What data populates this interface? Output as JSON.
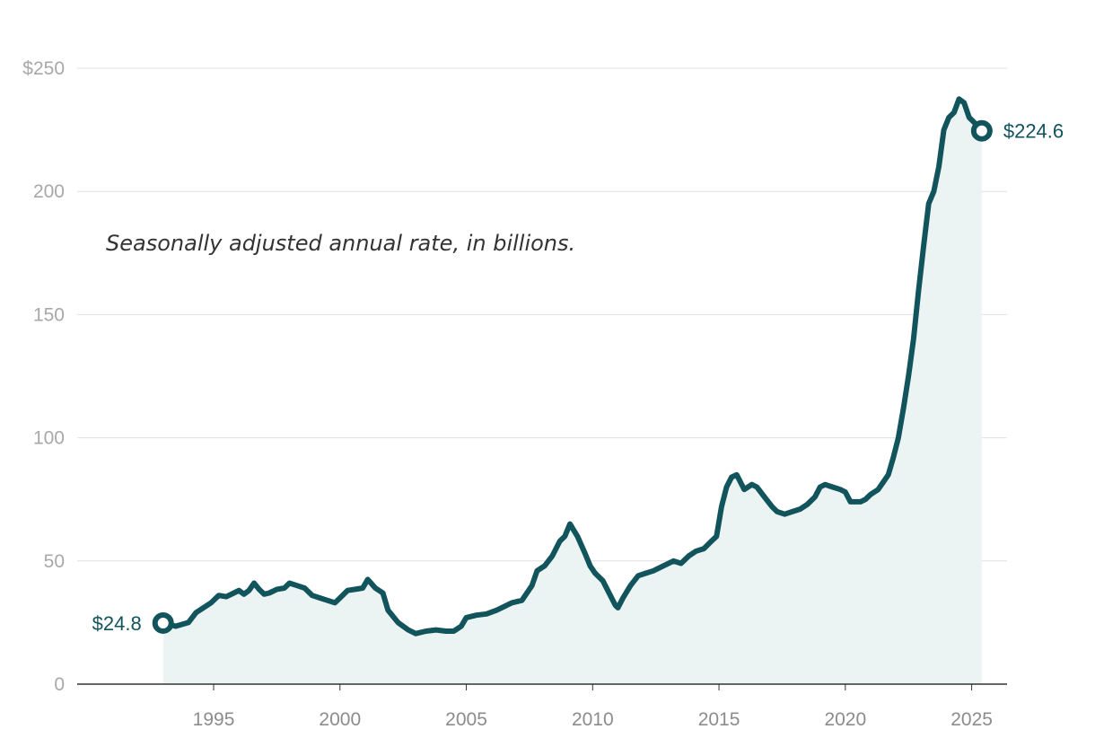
{
  "chart_data": {
    "type": "area",
    "title": "",
    "xlabel": "",
    "ylabel": "",
    "annotation": "Seasonally adjusted annual rate, in billions.",
    "xlim": [
      1989.6,
      2026.4
    ],
    "ylim": [
      0,
      250
    ],
    "yticks": [
      0,
      50,
      100,
      150,
      200,
      250
    ],
    "ytick_labels": [
      "0",
      "50",
      "100",
      "150",
      "200",
      "$250"
    ],
    "xticks": [
      1995,
      2000,
      2005,
      2010,
      2015,
      2020,
      2025
    ],
    "xtick_labels": [
      "1995",
      "2000",
      "2005",
      "2010",
      "2015",
      "2020",
      "2025"
    ],
    "start_label": "$24.8",
    "end_label": "$224.6",
    "colors": {
      "line": "#12545c",
      "area": "#ecf4f3",
      "grid": "#e0e0e0",
      "axis": "#333333"
    },
    "series": [
      {
        "name": "Seasonally adjusted annual rate",
        "x": [
          1993.0,
          1993.5,
          1994.0,
          1994.3,
          1994.6,
          1994.9,
          1995.2,
          1995.5,
          1995.8,
          1996.0,
          1996.2,
          1996.4,
          1996.6,
          1996.8,
          1997.0,
          1997.2,
          1997.5,
          1997.8,
          1998.0,
          1998.3,
          1998.6,
          1998.9,
          1999.2,
          1999.5,
          1999.8,
          2000.0,
          2000.3,
          2000.6,
          2000.9,
          2001.1,
          2001.4,
          2001.7,
          2001.9,
          2002.3,
          2002.7,
          2003.0,
          2003.4,
          2003.8,
          2004.2,
          2004.5,
          2004.8,
          2005.0,
          2005.4,
          2005.8,
          2006.2,
          2006.5,
          2006.8,
          2007.2,
          2007.6,
          2007.8,
          2008.1,
          2008.4,
          2008.7,
          2008.9,
          2009.1,
          2009.4,
          2009.7,
          2009.9,
          2010.1,
          2010.4,
          2010.7,
          2010.9,
          2011.0,
          2011.2,
          2011.5,
          2011.8,
          2012.1,
          2012.4,
          2012.8,
          2013.2,
          2013.5,
          2013.8,
          2014.1,
          2014.4,
          2014.7,
          2014.9,
          2015.1,
          2015.3,
          2015.5,
          2015.7,
          2016.0,
          2016.3,
          2016.5,
          2016.8,
          2017.1,
          2017.3,
          2017.6,
          2017.9,
          2018.2,
          2018.5,
          2018.8,
          2019.0,
          2019.2,
          2019.5,
          2019.8,
          2020.0,
          2020.2,
          2020.4,
          2020.6,
          2020.8,
          2021.0,
          2021.3,
          2021.5,
          2021.7,
          2021.9,
          2022.1,
          2022.3,
          2022.5,
          2022.7,
          2022.9,
          2023.1,
          2023.3,
          2023.5,
          2023.7,
          2023.9,
          2024.1,
          2024.3,
          2024.5,
          2024.7,
          2024.9,
          2025.1,
          2025.4
        ],
        "values": [
          24.8,
          23.5,
          25.0,
          29.0,
          31.0,
          33.0,
          36.0,
          35.5,
          37.0,
          38.0,
          36.5,
          38.0,
          41.0,
          38.5,
          36.5,
          37.0,
          38.5,
          39.0,
          41.0,
          40.0,
          39.0,
          36.0,
          35.0,
          34.0,
          33.0,
          35.0,
          38.0,
          38.5,
          39.0,
          42.5,
          39.0,
          37.0,
          30.0,
          25.0,
          22.0,
          20.5,
          21.5,
          22.0,
          21.5,
          21.5,
          23.5,
          27.0,
          28.0,
          28.5,
          30.0,
          31.5,
          33.0,
          34.0,
          40.0,
          46.0,
          48.0,
          52.0,
          58.0,
          60.0,
          65.0,
          60.0,
          53.0,
          48.0,
          45.0,
          42.0,
          36.0,
          32.0,
          31.0,
          35.0,
          40.0,
          44.0,
          45.0,
          46.0,
          48.0,
          50.0,
          49.0,
          52.0,
          54.0,
          55.0,
          58.0,
          60.0,
          72.0,
          80.0,
          84.0,
          85.0,
          79.0,
          81.0,
          80.0,
          76.0,
          72.0,
          70.0,
          69.0,
          70.0,
          71.0,
          73.0,
          76.0,
          80.0,
          81.0,
          80.0,
          79.0,
          78.0,
          74.0,
          74.0,
          74.0,
          75.0,
          77.0,
          79.0,
          82.0,
          85.0,
          92.0,
          100.0,
          112.0,
          125.0,
          140.0,
          160.0,
          178.0,
          195.0,
          200.0,
          210.0,
          225.0,
          230.0,
          232.0,
          237.5,
          236.0,
          230.0,
          228.0,
          224.6
        ]
      }
    ]
  }
}
